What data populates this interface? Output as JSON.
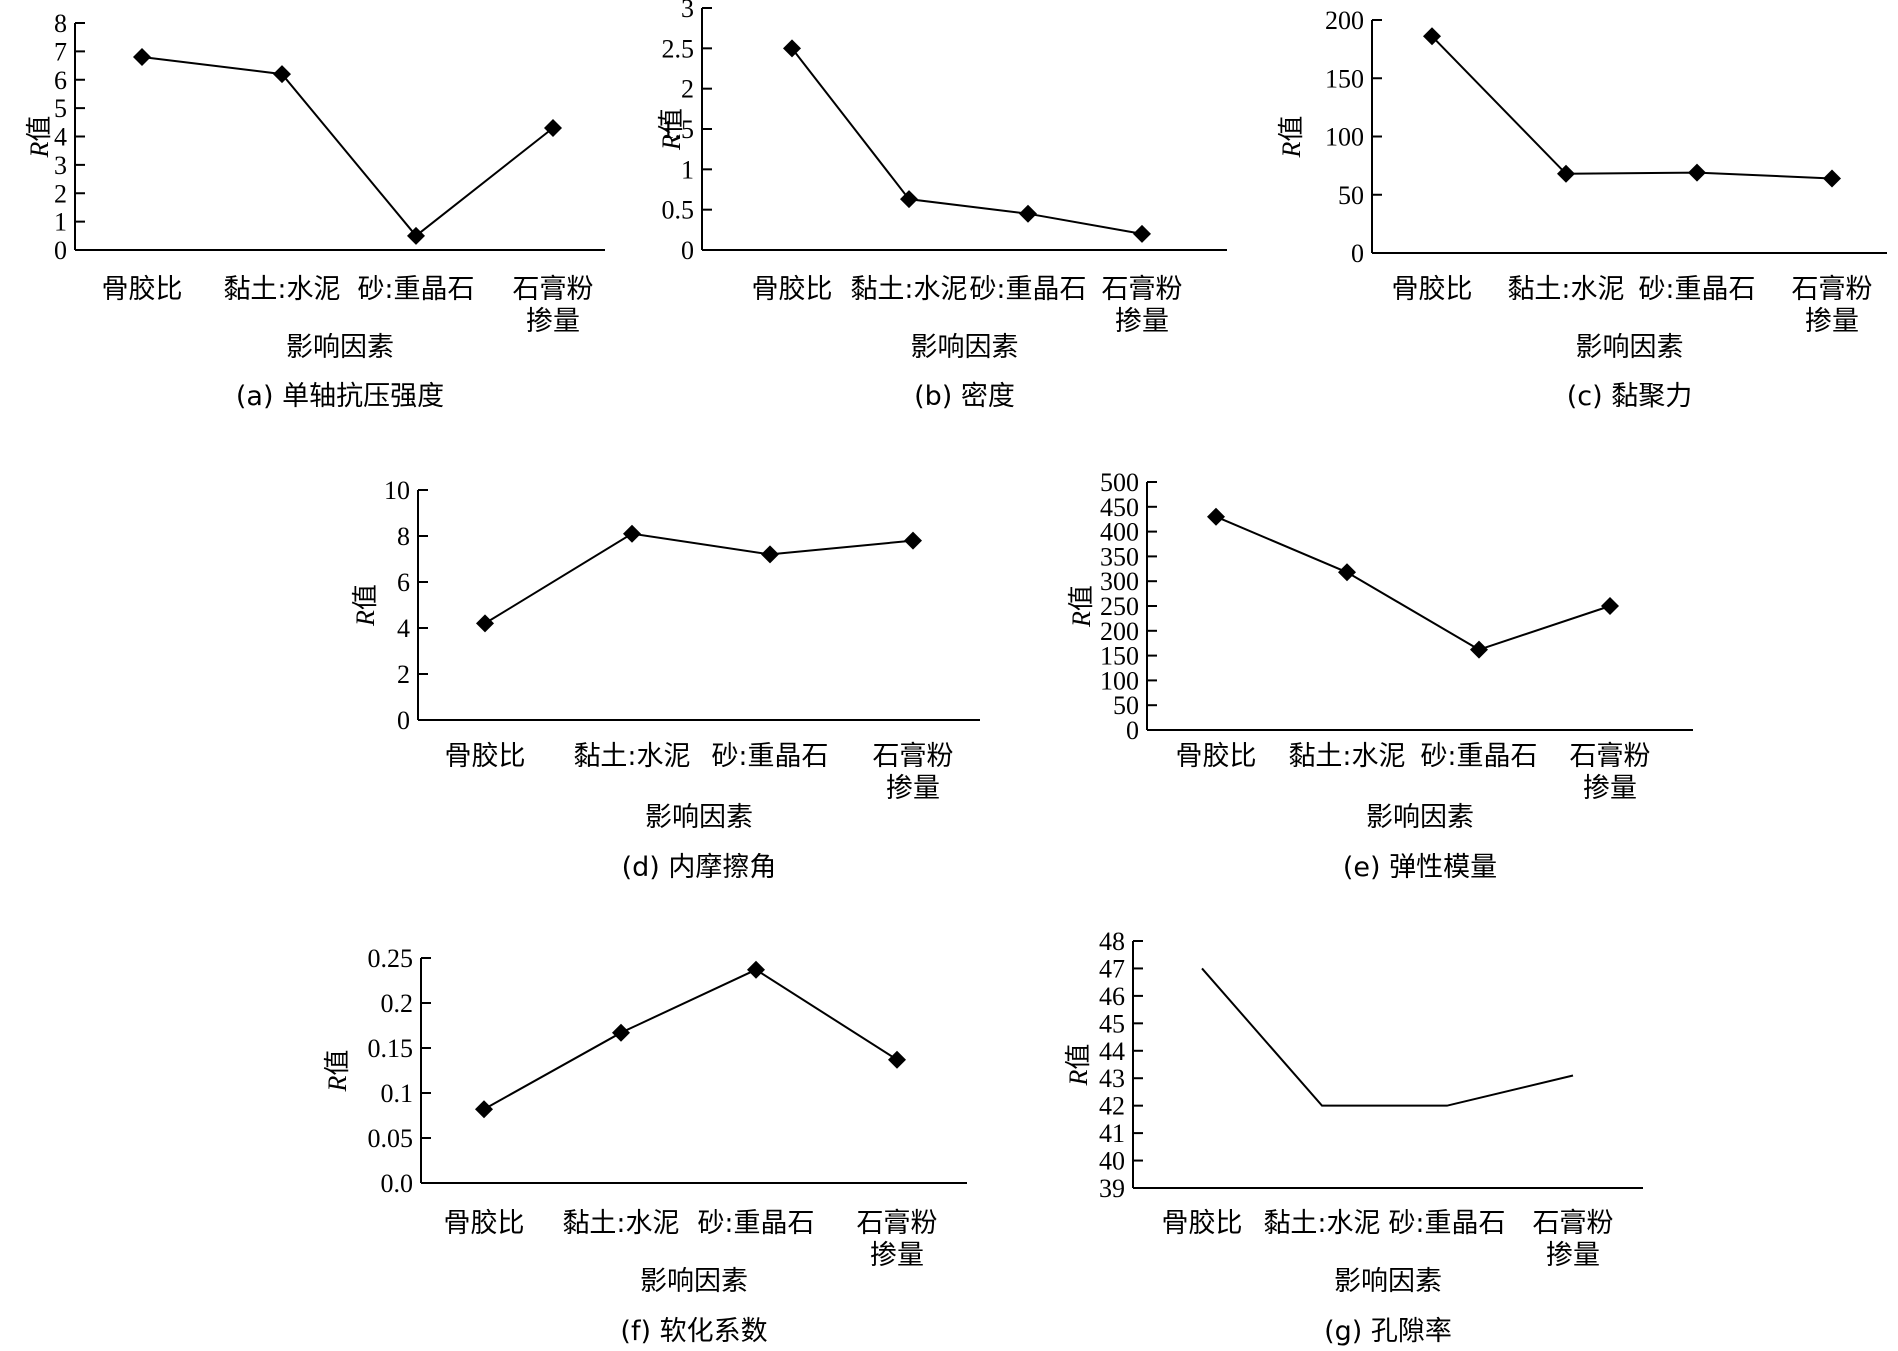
{
  "axis_common": {
    "categories": [
      [
        "骨胶比"
      ],
      [
        "黏土:水泥"
      ],
      [
        "砂:重晶石"
      ],
      [
        "石膏粉",
        "掺量"
      ]
    ],
    "xlabel": "影响因素",
    "ylabel": "R值"
  },
  "chart_data": [
    {
      "id": "a",
      "type": "line",
      "caption": "(a) 单轴抗压强度",
      "xlabel": "影响因素",
      "ylabel": "R值",
      "categories": [
        "骨胶比",
        "黏土:水泥",
        "砂:重晶石",
        "石膏粉掺量"
      ],
      "values": [
        6.8,
        6.2,
        0.5,
        4.3
      ],
      "ylim": [
        0,
        8
      ],
      "yticks": [
        0,
        1,
        2,
        3,
        4,
        5,
        6,
        7,
        8
      ],
      "ytick_labels": [
        "0",
        "1",
        "2",
        "3",
        "4",
        "5",
        "6",
        "7",
        "8"
      ],
      "markers": true
    },
    {
      "id": "b",
      "type": "line",
      "caption": "(b) 密度",
      "xlabel": "影响因素",
      "ylabel": "R值",
      "categories": [
        "骨胶比",
        "黏土:水泥",
        "砂:重晶石",
        "石膏粉掺量"
      ],
      "values": [
        2.5,
        0.63,
        0.45,
        0.2
      ],
      "ylim": [
        0,
        3
      ],
      "yticks": [
        0,
        0.5,
        1,
        1.5,
        2,
        2.5,
        3
      ],
      "ytick_labels": [
        "0",
        "0.5",
        "1",
        "1.5",
        "2",
        "2.5",
        "3"
      ],
      "markers": true
    },
    {
      "id": "c",
      "type": "line",
      "caption": "(c) 黏聚力",
      "xlabel": "影响因素",
      "ylabel": "R值",
      "categories": [
        "骨胶比",
        "黏土:水泥",
        "砂:重晶石",
        "石膏粉掺量"
      ],
      "values": [
        186,
        68,
        69,
        64
      ],
      "ylim": [
        0,
        200
      ],
      "yticks": [
        0,
        50,
        100,
        150,
        200
      ],
      "ytick_labels": [
        "0",
        "50",
        "100",
        "150",
        "200"
      ],
      "markers": true
    },
    {
      "id": "d",
      "type": "line",
      "caption": "(d) 内摩擦角",
      "xlabel": "影响因素",
      "ylabel": "R值",
      "categories": [
        "骨胶比",
        "黏土:水泥",
        "砂:重晶石",
        "石膏粉掺量"
      ],
      "values": [
        4.2,
        8.1,
        7.2,
        7.8
      ],
      "ylim": [
        0,
        10
      ],
      "yticks": [
        0,
        2,
        4,
        6,
        8,
        10
      ],
      "ytick_labels": [
        "0",
        "2",
        "4",
        "6",
        "8",
        "10"
      ],
      "markers": true
    },
    {
      "id": "e",
      "type": "line",
      "caption": "(e) 弹性模量",
      "xlabel": "影响因素",
      "ylabel": "R值",
      "categories": [
        "骨胶比",
        "黏土:水泥",
        "砂:重晶石",
        "石膏粉掺量"
      ],
      "values": [
        430,
        318,
        162,
        250
      ],
      "ylim": [
        0,
        500
      ],
      "yticks": [
        0,
        50,
        100,
        150,
        200,
        250,
        300,
        350,
        400,
        450,
        500
      ],
      "ytick_labels": [
        "0",
        "50",
        "100",
        "150",
        "200",
        "250",
        "300",
        "350",
        "400",
        "450",
        "500"
      ],
      "markers": true
    },
    {
      "id": "f",
      "type": "line",
      "caption": "(f) 软化系数",
      "xlabel": "影响因素",
      "ylabel": "R值",
      "categories": [
        "骨胶比",
        "黏土:水泥",
        "砂:重晶石",
        "石膏粉掺量"
      ],
      "values": [
        0.082,
        0.167,
        0.237,
        0.137
      ],
      "ylim": [
        0,
        0.25
      ],
      "yticks": [
        0,
        0.05,
        0.1,
        0.15,
        0.2,
        0.25
      ],
      "ytick_labels": [
        "0.0",
        "0.05",
        "0.1",
        "0.15",
        "0.2",
        "0.25"
      ],
      "markers": true
    },
    {
      "id": "g",
      "type": "line",
      "caption": "(g) 孔隙率",
      "xlabel": "影响因素",
      "ylabel": "R值",
      "categories": [
        "骨胶比",
        "黏土:水泥",
        "砂:重晶石",
        "石膏粉掺量"
      ],
      "values": [
        47,
        42,
        42,
        43.1
      ],
      "ylim": [
        39,
        48
      ],
      "yticks": [
        39,
        40,
        41,
        42,
        43,
        44,
        45,
        46,
        47,
        48
      ],
      "ytick_labels": [
        "39",
        "40",
        "41",
        "42",
        "43",
        "44",
        "45",
        "46",
        "47",
        "48"
      ],
      "markers": false
    }
  ]
}
